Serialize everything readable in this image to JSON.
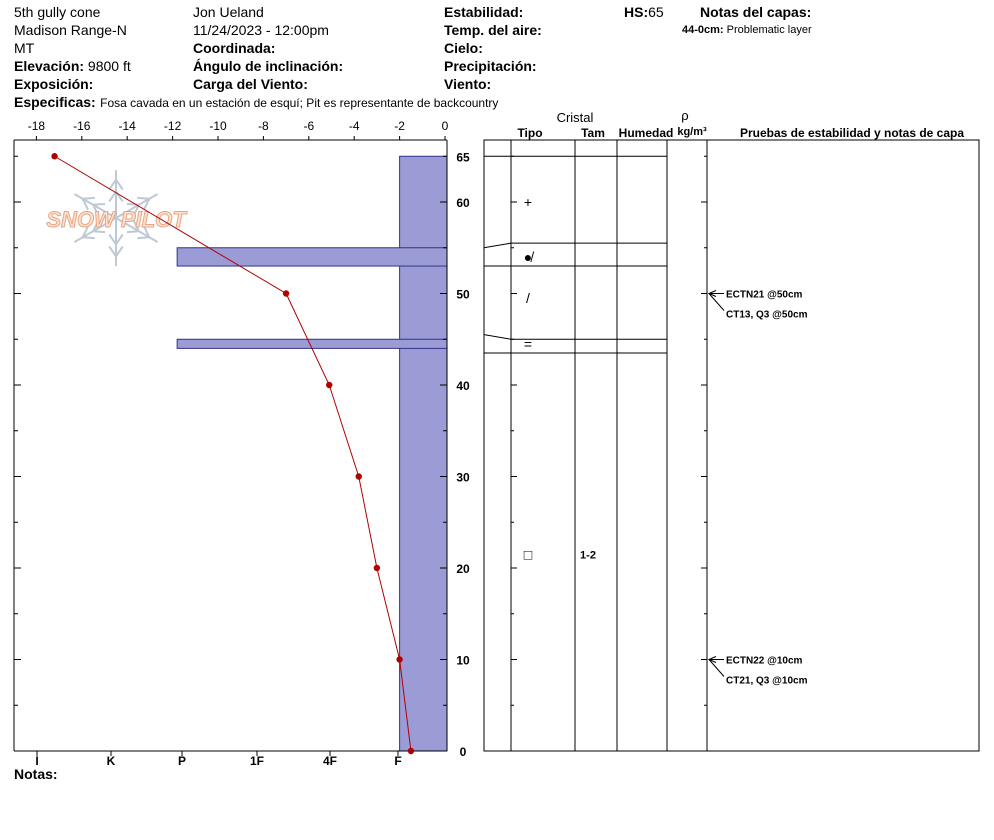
{
  "header": {
    "location": "5th gully cone",
    "range": "Madison Range-N",
    "state": "MT",
    "elevation_label": "Elevación:",
    "elevation_value": "9800 ft",
    "exposure_label": "Exposición:",
    "observer": "Jon Ueland",
    "datetime": "11/24/2023 - 12:00pm",
    "coord_label": "Coordinada:",
    "slope_label": "Ángulo de inclinación:",
    "wind_load_label": "Carga del Viento:",
    "stability_label": "Estabilidad:",
    "air_temp_label": "Temp. del aire:",
    "sky_label": "Cielo:",
    "precip_label": "Precipitación:",
    "wind_label": "Viento:",
    "hs_label": "HS:",
    "hs_value": "65",
    "layer_notes_title": "Notas del capas:",
    "layer_note_range": "44-0cm:",
    "layer_note_text": "Problematic layer",
    "specifics_label": "Especificas:",
    "specifics_text": "Fosa cavada en un estación de esquí; Pit es representante de backcountry",
    "notes_label": "Notas:"
  },
  "watermark": {
    "text": "SNOW PILOT"
  },
  "table_header": {
    "crystal": "Cristal",
    "type": "Tipo",
    "size": "Tam",
    "moisture": "Humedad",
    "rho": "ρ",
    "density_unit": "kg/m³",
    "tests": "Pruebas de estabilidad y notas de capa"
  },
  "crystals": [
    {
      "depth": 60,
      "symbol": "+",
      "size": ""
    },
    {
      "depth": 54,
      "symbol": "●̸",
      "size": ""
    },
    {
      "depth": 49.5,
      "symbol": "/",
      "size": ""
    },
    {
      "depth": 44.5,
      "symbol": "=",
      "size": ""
    },
    {
      "depth": 21.5,
      "symbol": "□",
      "size": "1-2"
    }
  ],
  "tests": [
    {
      "depth": 50,
      "labels": [
        "ECTN21 @50cm",
        "CT13, Q3 @50cm"
      ]
    },
    {
      "depth": 10,
      "labels": [
        "ECTN22 @10cm",
        "CT21, Q3 @10cm"
      ]
    }
  ],
  "chart_data": {
    "type": "line",
    "temperature_axis": {
      "ticks": [
        -18,
        -16,
        -14,
        -12,
        -10,
        -8,
        -6,
        -4,
        -2,
        0
      ],
      "range": [
        -19,
        0
      ]
    },
    "depth_axis": {
      "ticks": [
        0,
        10,
        20,
        30,
        40,
        50,
        60,
        65
      ],
      "range": [
        0,
        66
      ],
      "unit": "cm"
    },
    "hardness_scale": [
      "I",
      "K",
      "P",
      "1F",
      "4F",
      "F"
    ],
    "temperature_profile": {
      "depth": [
        65,
        50,
        40,
        30,
        20,
        10,
        0
      ],
      "temperature": [
        -17.2,
        -7,
        -5.1,
        -3.8,
        -3.0,
        -2.0,
        -1.5
      ]
    },
    "hardness_layers": [
      {
        "top": 65,
        "bottom": 0,
        "hardness_temp": -2
      },
      {
        "top": 55,
        "bottom": 53,
        "hardness_temp": -11.8
      },
      {
        "top": 45,
        "bottom": 44,
        "hardness_temp": -11.8
      }
    ],
    "layer_boundaries": [
      65,
      55,
      53,
      45.5,
      43.5
    ],
    "colors": {
      "hardness": "#9b9bd6",
      "hardness_stroke": "#33338a",
      "profile": "#b00000"
    }
  }
}
